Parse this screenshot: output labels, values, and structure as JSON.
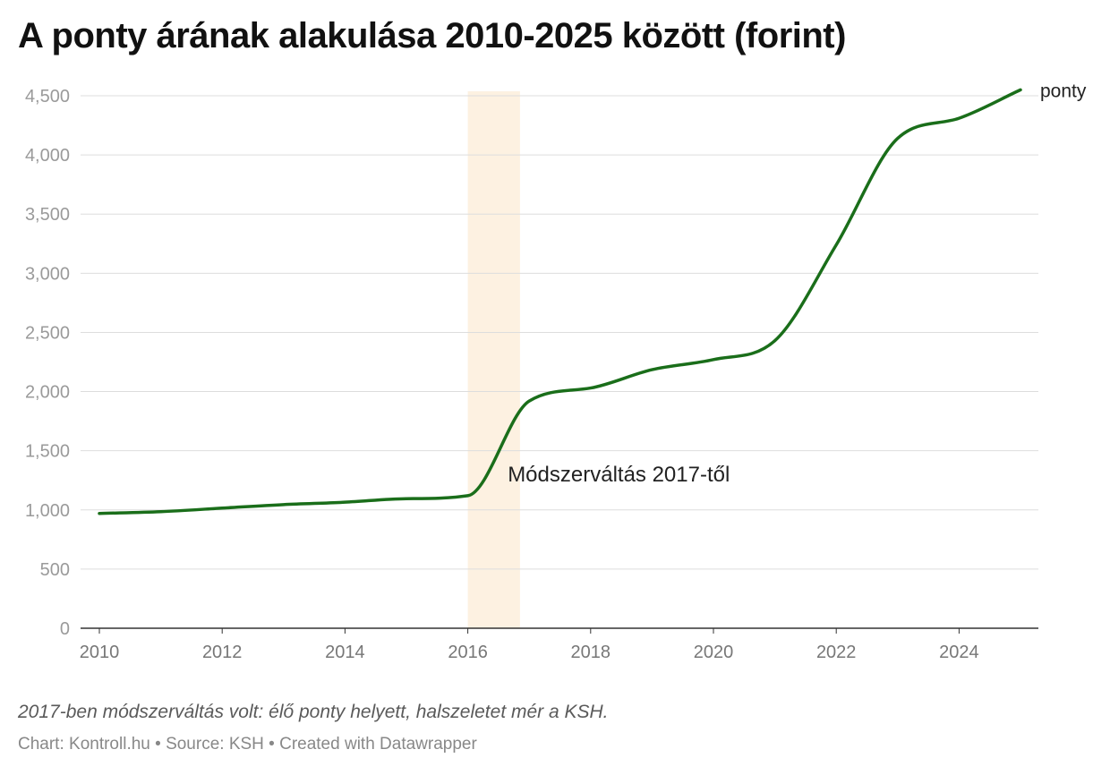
{
  "chart_data": {
    "type": "line",
    "title": "A ponty árának alakulása 2010-2025 között (forint)",
    "xlabel": "",
    "ylabel": "",
    "xlim": [
      2010,
      2025
    ],
    "ylim": [
      0,
      4500
    ],
    "x_ticks": [
      2010,
      2012,
      2014,
      2016,
      2018,
      2020,
      2022,
      2024
    ],
    "y_ticks": [
      0,
      500,
      1000,
      1500,
      2000,
      2500,
      3000,
      3500,
      4000,
      4500
    ],
    "y_tick_labels": [
      "0",
      "500",
      "1,000",
      "1,500",
      "2,000",
      "2,500",
      "3,000",
      "3,500",
      "4,000",
      "4,500"
    ],
    "grid": "horizontal",
    "series": [
      {
        "name": "ponty",
        "color": "#1a6e1a",
        "x": [
          2010,
          2011,
          2012,
          2013,
          2014,
          2015,
          2016,
          2017,
          2018,
          2019,
          2020,
          2021,
          2022,
          2023,
          2024,
          2025
        ],
        "y": [
          970,
          985,
          1015,
          1045,
          1065,
          1095,
          1120,
          1920,
          2030,
          2185,
          2270,
          2430,
          3240,
          4140,
          4310,
          4550
        ]
      }
    ],
    "highlight_band": {
      "x_start": 2016,
      "x_end": 2016.85,
      "color": "#fdf1e1",
      "label": "Módszerváltás 2017-től",
      "label_x": 2016.65,
      "label_y": 1300
    }
  },
  "notes": "2017-ben módszerváltás volt: élő ponty helyett, halszeletet mér a KSH.",
  "credit": "Chart: Kontroll.hu • Source: KSH • Created with Datawrapper"
}
